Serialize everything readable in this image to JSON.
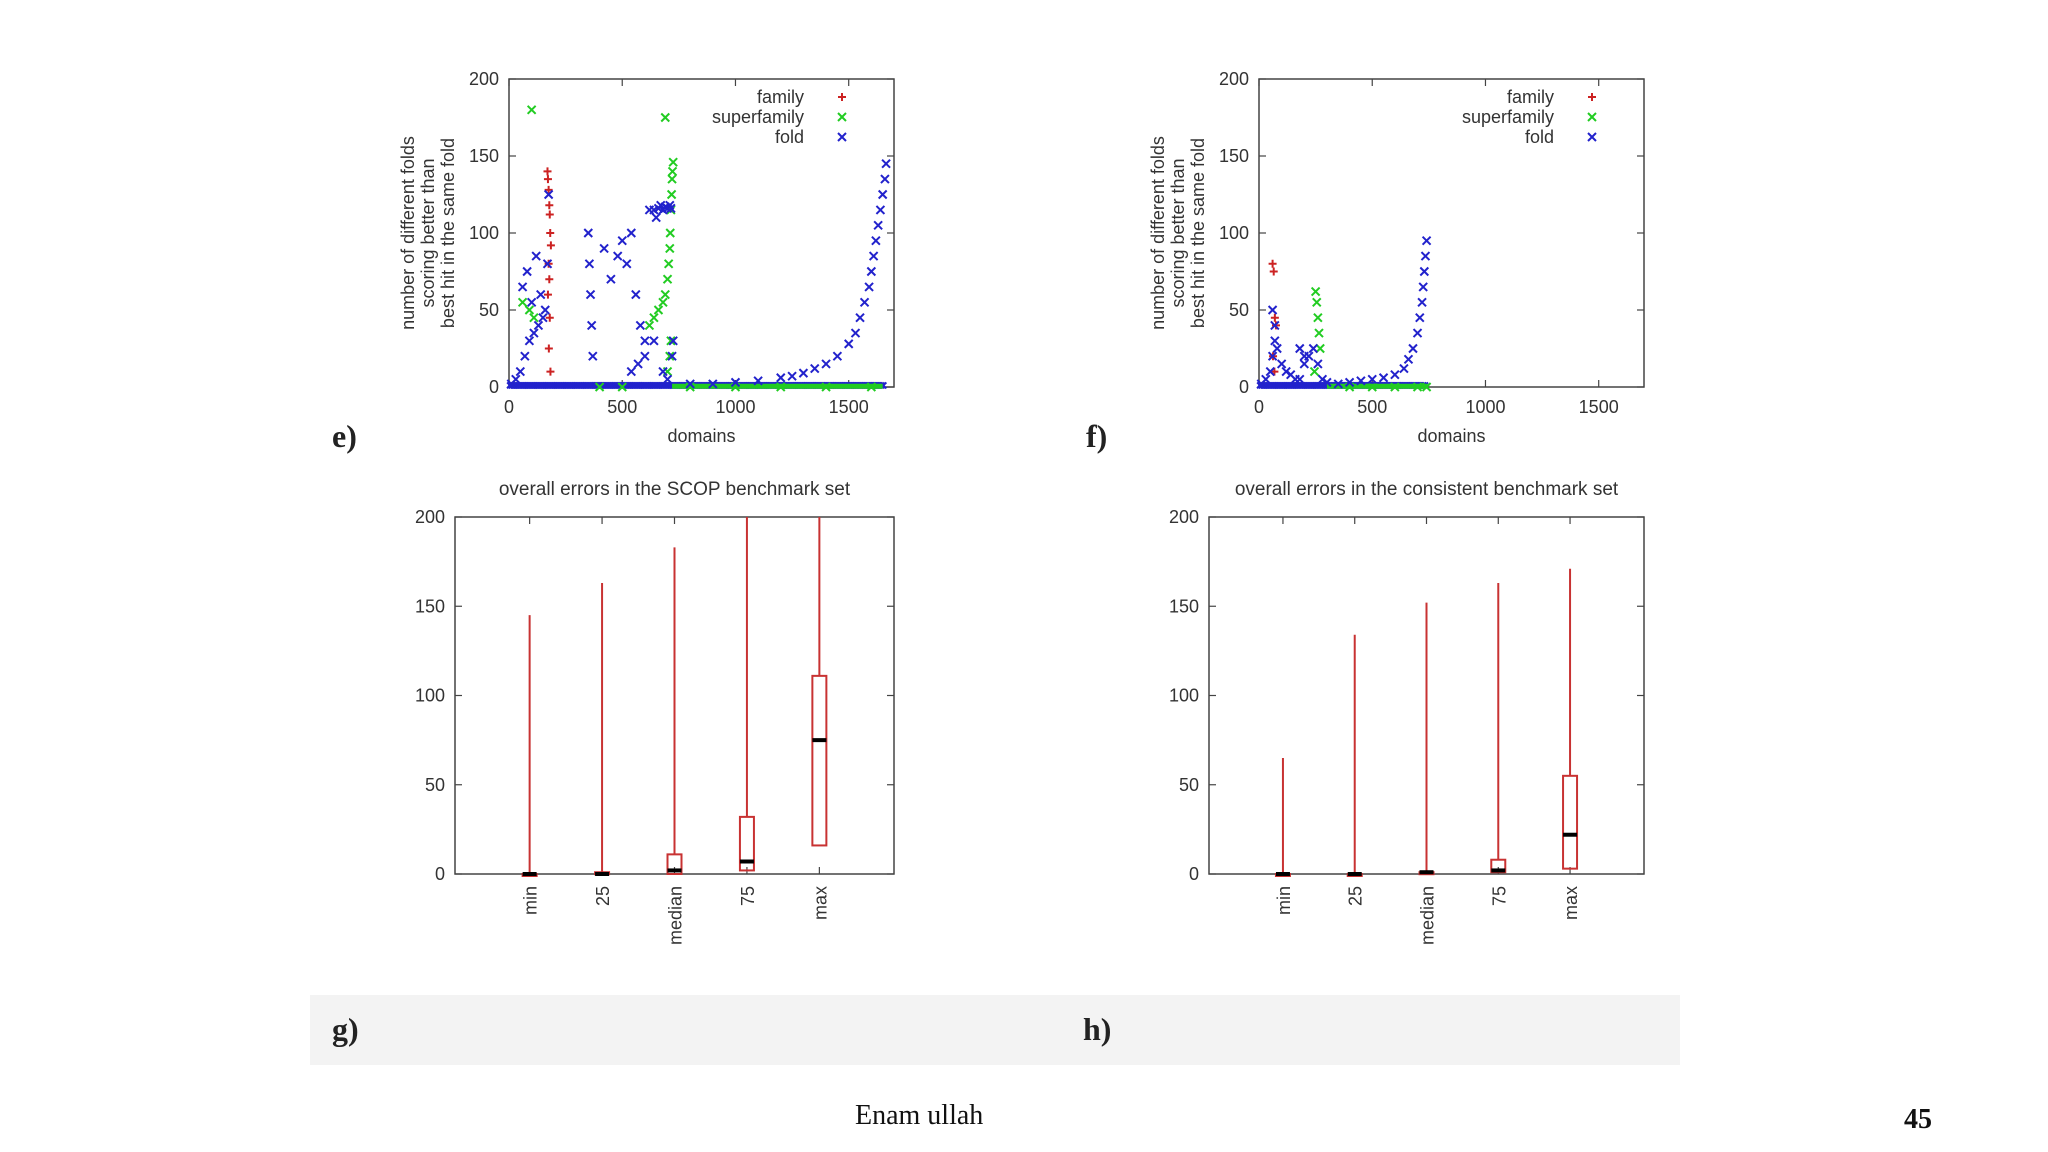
{
  "chart_data": [
    {
      "panel": "e)",
      "type": "scatter",
      "title": "",
      "xlabel": "domains",
      "ylabel": [
        "number of different folds",
        "scoring better than",
        "best hit in the same fold"
      ],
      "xlim": [
        0,
        1700
      ],
      "ylim": [
        0,
        200
      ],
      "xticks": [
        0,
        500,
        1000,
        1500
      ],
      "yticks": [
        0,
        50,
        100,
        150,
        200
      ],
      "legend_position": "top-right",
      "series": [
        {
          "name": "family",
          "marker": "+",
          "color": "#cc2222",
          "x": [
            170,
            172,
            175,
            178,
            180,
            182,
            185,
            175,
            178,
            172,
            180,
            176,
            183
          ],
          "y": [
            140,
            135,
            128,
            118,
            112,
            100,
            92,
            80,
            70,
            60,
            45,
            25,
            10
          ]
        },
        {
          "name": "superfamily",
          "marker": "x",
          "color": "#22cc22",
          "x": [
            100,
            60,
            90,
            110,
            620,
            640,
            660,
            680,
            690,
            700,
            705,
            710,
            712,
            715,
            718,
            720,
            722,
            725,
            690,
            700,
            710,
            715,
            400,
            500,
            800,
            1000,
            1200,
            1400,
            1600
          ],
          "y": [
            180,
            55,
            50,
            45,
            40,
            45,
            50,
            55,
            60,
            70,
            80,
            90,
            100,
            115,
            125,
            135,
            140,
            146,
            175,
            10,
            20,
            30,
            0,
            0,
            0,
            0,
            0,
            0,
            0
          ]
        },
        {
          "name": "fold",
          "marker": "x",
          "color": "#2222cc",
          "x": [
            10,
            30,
            50,
            70,
            90,
            110,
            130,
            150,
            160,
            170,
            175,
            60,
            80,
            100,
            120,
            140,
            350,
            355,
            360,
            365,
            370,
            420,
            450,
            480,
            500,
            520,
            540,
            560,
            580,
            600,
            620,
            640,
            650,
            660,
            670,
            680,
            690,
            700,
            710,
            715,
            720,
            725,
            540,
            570,
            600,
            640,
            680,
            700,
            800,
            900,
            1000,
            1100,
            1200,
            1250,
            1300,
            1350,
            1400,
            1450,
            1500,
            1530,
            1550,
            1570,
            1590,
            1600,
            1610,
            1620,
            1630,
            1640,
            1650,
            1660,
            1665
          ],
          "y": [
            2,
            5,
            10,
            20,
            30,
            35,
            40,
            45,
            50,
            80,
            125,
            65,
            75,
            55,
            85,
            60,
            100,
            80,
            60,
            40,
            20,
            90,
            70,
            85,
            95,
            80,
            100,
            60,
            40,
            30,
            115,
            115,
            110,
            116,
            118,
            115,
            117,
            116,
            118,
            116,
            20,
            30,
            10,
            15,
            20,
            30,
            10,
            5,
            2,
            2,
            3,
            4,
            6,
            7,
            9,
            12,
            15,
            20,
            28,
            35,
            45,
            55,
            65,
            75,
            85,
            95,
            105,
            115,
            125,
            135,
            145
          ]
        }
      ]
    },
    {
      "panel": "f)",
      "type": "scatter",
      "title": "",
      "xlabel": "domains",
      "ylabel": [
        "number of different folds",
        "scoring better than",
        "best hit in the same fold"
      ],
      "xlim": [
        0,
        1700
      ],
      "ylim": [
        0,
        200
      ],
      "xticks": [
        0,
        500,
        1000,
        1500
      ],
      "yticks": [
        0,
        50,
        100,
        150,
        200
      ],
      "legend_position": "top-right",
      "series": [
        {
          "name": "family",
          "marker": "+",
          "color": "#cc2222",
          "x": [
            60,
            65,
            70,
            75,
            62,
            68
          ],
          "y": [
            80,
            75,
            45,
            40,
            20,
            10
          ]
        },
        {
          "name": "superfamily",
          "marker": "x",
          "color": "#22cc22",
          "x": [
            250,
            255,
            260,
            265,
            270,
            245,
            400,
            500,
            600,
            700,
            740
          ],
          "y": [
            62,
            55,
            45,
            35,
            25,
            10,
            0,
            0,
            0,
            0,
            0
          ]
        },
        {
          "name": "fold",
          "marker": "x",
          "color": "#2222cc",
          "x": [
            10,
            30,
            50,
            60,
            70,
            80,
            100,
            120,
            140,
            160,
            180,
            200,
            220,
            240,
            260,
            280,
            300,
            350,
            400,
            450,
            500,
            550,
            600,
            640,
            660,
            680,
            700,
            710,
            720,
            725,
            730,
            735,
            740,
            60,
            70,
            180,
            200
          ],
          "y": [
            2,
            5,
            10,
            20,
            30,
            25,
            15,
            10,
            8,
            5,
            5,
            15,
            20,
            25,
            15,
            5,
            3,
            2,
            3,
            4,
            5,
            6,
            8,
            12,
            18,
            25,
            35,
            45,
            55,
            65,
            75,
            85,
            95,
            50,
            40,
            25,
            20
          ]
        }
      ]
    },
    {
      "panel": "g)",
      "type": "box",
      "title": "overall errors in the SCOP benchmark set",
      "xlabel": "",
      "ylabel": "",
      "ylim": [
        0,
        200
      ],
      "yticks": [
        0,
        50,
        100,
        150,
        200
      ],
      "categories": [
        "min",
        "25",
        "median",
        "75",
        "max"
      ],
      "boxes": [
        {
          "min": 0,
          "q1": 0,
          "median": 0,
          "q3": 0,
          "max": 145
        },
        {
          "min": 0,
          "q1": 0,
          "median": 0,
          "q3": 1,
          "max": 163
        },
        {
          "min": 0,
          "q1": 0,
          "median": 2,
          "q3": 11,
          "max": 183
        },
        {
          "min": 0,
          "q1": 2,
          "median": 7,
          "q3": 32,
          "max": 200
        },
        {
          "min": 0,
          "q1": 16,
          "median": 75,
          "q3": 111,
          "max": 200
        }
      ]
    },
    {
      "panel": "h)",
      "type": "box",
      "title": "overall errors in the consistent benchmark set",
      "xlabel": "",
      "ylabel": "",
      "ylim": [
        0,
        200
      ],
      "yticks": [
        0,
        50,
        100,
        150,
        200
      ],
      "categories": [
        "min",
        "25",
        "median",
        "75",
        "max"
      ],
      "boxes": [
        {
          "min": 0,
          "q1": 0,
          "median": 0,
          "q3": 0,
          "max": 65
        },
        {
          "min": 0,
          "q1": 0,
          "median": 0,
          "q3": 0,
          "max": 134
        },
        {
          "min": 0,
          "q1": 0,
          "median": 1,
          "q3": 1,
          "max": 152
        },
        {
          "min": 0,
          "q1": 1,
          "median": 2,
          "q3": 8,
          "max": 163
        },
        {
          "min": 0,
          "q1": 3,
          "median": 22,
          "q3": 55,
          "max": 171
        }
      ]
    }
  ],
  "footer": {
    "author": "Enam ullah",
    "page_number": "45"
  }
}
